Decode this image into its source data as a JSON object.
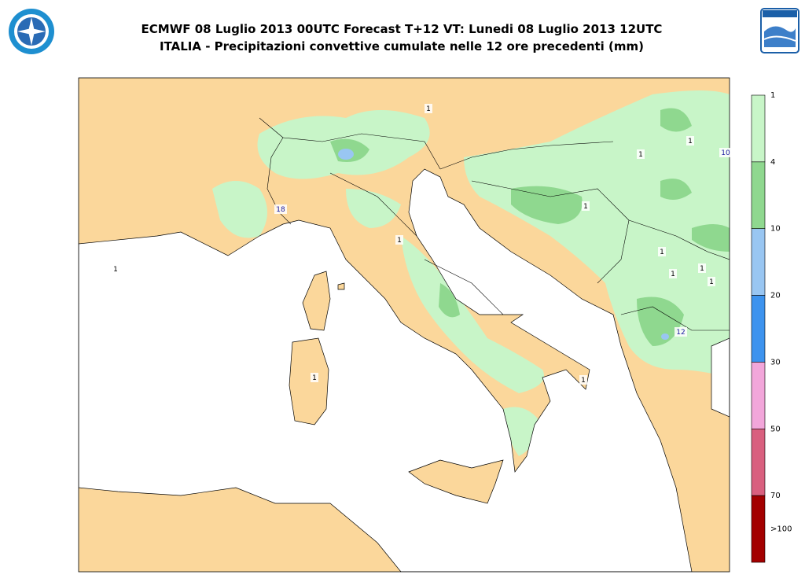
{
  "header": {
    "title": "ECMWF 08 Luglio 2013 00UTC Forecast T+12 VT: Lunedi 08 Luglio 2013 12UTC",
    "subtitle": "ITALIA - Precipitazioni convettive cumulate nelle 12 ore precedenti (mm)"
  },
  "map": {
    "contour_labels": [
      "1",
      "1",
      "1",
      "1",
      "1",
      "1",
      "1",
      "1",
      "1",
      "1",
      "1",
      "1",
      "18",
      "10",
      "12"
    ]
  },
  "colorbar": {
    "labels": [
      "1",
      "4",
      "10",
      "20",
      "30",
      "50",
      "70",
      ">100"
    ],
    "colors": [
      "#c8f5c8",
      "#8fd88f",
      "#99c6f2",
      "#3d93ee",
      "#f2a6da",
      "#d9607f",
      "#a30000"
    ]
  }
}
